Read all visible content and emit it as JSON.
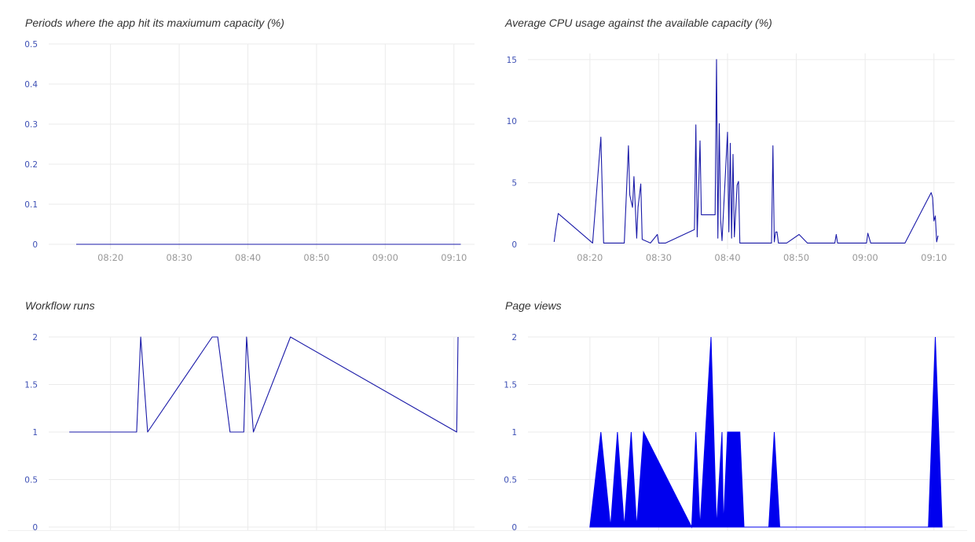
{
  "colors": {
    "series": "#1a1aa8",
    "area_fill": "#0000ee",
    "grid": "#ebebeb",
    "tick_text": "#3f51b5",
    "xtick_text": "#999999",
    "title_text": "#333333"
  },
  "chart_data": [
    {
      "type": "line",
      "title": "Periods where the app hit its maxiumum capacity (%)",
      "xlabel": "",
      "ylabel": "",
      "ylim": [
        0,
        0.5
      ],
      "yticks": [
        0,
        0.1,
        0.2,
        0.3,
        0.4,
        0.5
      ],
      "ytick_labels": [
        "0",
        "0.1",
        "0.2",
        "0.3",
        "0.4",
        "0.5"
      ],
      "xlim": [
        "08:11",
        "09:13"
      ],
      "xticks": [
        "08:20",
        "08:30",
        "08:40",
        "08:50",
        "09:00",
        "09:10"
      ],
      "grid": true,
      "series": [
        {
          "x": [
            "08:15",
            "08:25",
            "08:35",
            "08:45",
            "08:55",
            "09:05",
            "09:11"
          ],
          "y": [
            0,
            0,
            0,
            0,
            0,
            0,
            0
          ]
        }
      ]
    },
    {
      "type": "line",
      "title": "Average CPU usage against the available capacity (%)",
      "xlabel": "",
      "ylabel": "",
      "ylim": [
        0,
        15.5
      ],
      "yticks": [
        0,
        5,
        10,
        15
      ],
      "ytick_labels": [
        "0",
        "5",
        "10",
        "15"
      ],
      "xlim": [
        "08:11",
        "09:13"
      ],
      "xticks": [
        "08:20",
        "08:30",
        "08:40",
        "08:50",
        "09:00",
        "09:10"
      ],
      "grid": true,
      "series": [
        {
          "x": [
            "08:14:48",
            "08:15:00",
            "08:15:24",
            "08:20:24",
            "08:21:36",
            "08:22:00",
            "08:25:00",
            "08:25:36",
            "08:25:48",
            "08:26:12",
            "08:26:24",
            "08:26:48",
            "08:27:00",
            "08:27:24",
            "08:27:36",
            "08:28:48",
            "08:29:48",
            "08:30:00",
            "08:30:12",
            "08:31:00",
            "08:35:12",
            "08:35:24",
            "08:35:36",
            "08:36:00",
            "08:36:12",
            "08:38:12",
            "08:38:24",
            "08:38:36",
            "08:38:48",
            "08:39:00",
            "08:39:12",
            "08:40:00",
            "08:40:12",
            "08:40:24",
            "08:40:36",
            "08:40:48",
            "08:41:00",
            "08:41:24",
            "08:41:36",
            "08:41:48",
            "08:42:00",
            "08:46:24",
            "08:46:36",
            "08:46:48",
            "08:47:00",
            "08:47:12",
            "08:47:24",
            "08:48:36",
            "08:50:24",
            "08:51:36",
            "08:55:36",
            "08:55:48",
            "08:56:00",
            "09:00:12",
            "09:00:24",
            "09:00:48",
            "09:05:48",
            "09:09:36",
            "09:09:48",
            "09:10:00",
            "09:10:12",
            "09:10:24",
            "09:10:36"
          ],
          "y": [
            0.2,
            1.0,
            2.5,
            0.1,
            8.7,
            0.1,
            0.1,
            8.0,
            4.0,
            3.0,
            5.5,
            0.5,
            3.0,
            4.9,
            0.4,
            0.1,
            0.8,
            0.1,
            0.1,
            0.1,
            1.2,
            9.7,
            0.6,
            8.4,
            2.4,
            2.4,
            15.0,
            0.5,
            9.8,
            2.0,
            0.3,
            9.1,
            1.0,
            8.2,
            0.5,
            7.3,
            0.6,
            4.8,
            5.1,
            0.1,
            0.1,
            0.1,
            8.0,
            0.2,
            1.0,
            1.0,
            0.1,
            0.1,
            0.8,
            0.1,
            0.1,
            0.8,
            0.1,
            0.1,
            0.9,
            0.1,
            0.1,
            4.2,
            3.8,
            1.9,
            2.3,
            0.2,
            0.7
          ]
        }
      ]
    },
    {
      "type": "line",
      "title": "Workflow runs",
      "xlabel": "",
      "ylabel": "",
      "ylim": [
        0,
        2
      ],
      "yticks": [
        0,
        0.5,
        1,
        1.5,
        2
      ],
      "ytick_labels": [
        "0",
        "0.5",
        "1",
        "1.5",
        "2"
      ],
      "xlim": [
        "08:11",
        "09:13"
      ],
      "xticks": [
        "08:20",
        "08:30",
        "08:40",
        "08:50",
        "09:00",
        "09:10"
      ],
      "grid": true,
      "series": [
        {
          "x": [
            "08:14:00",
            "08:23:48",
            "08:24:24",
            "08:25:24",
            "08:34:48",
            "08:35:36",
            "08:37:24",
            "08:39:24",
            "08:39:48",
            "08:40:48",
            "08:46:12",
            "09:10:24",
            "09:10:36"
          ],
          "y": [
            1,
            1,
            2,
            1,
            2,
            2,
            1,
            1,
            2,
            1,
            2,
            1,
            2
          ]
        }
      ]
    },
    {
      "type": "area",
      "title": "Page views",
      "xlabel": "",
      "ylabel": "",
      "ylim": [
        0,
        2
      ],
      "yticks": [
        0,
        0.5,
        1,
        1.5,
        2
      ],
      "ytick_labels": [
        "0",
        "0.5",
        "1",
        "1.5",
        "2"
      ],
      "xlim": [
        "08:11",
        "09:13"
      ],
      "xticks": [
        "08:20",
        "08:30",
        "08:40",
        "08:50",
        "09:00",
        "09:10"
      ],
      "grid": true,
      "series": [
        {
          "x": [
            "08:20:00",
            "08:21:36",
            "08:23:00",
            "08:24:00",
            "08:25:00",
            "08:26:00",
            "08:26:48",
            "08:27:48",
            "08:34:48",
            "08:35:24",
            "08:36:00",
            "08:37:36",
            "08:38:24",
            "08:39:12",
            "08:39:24",
            "08:40:00",
            "08:40:36",
            "08:40:48",
            "08:41:24",
            "08:41:48",
            "08:42:24",
            "08:46:00",
            "08:46:48",
            "08:47:36",
            "09:09:12",
            "09:10:12",
            "09:11:12"
          ],
          "y": [
            0,
            1,
            0,
            1,
            0,
            1,
            0,
            1,
            0,
            1,
            0,
            2,
            0,
            1,
            0,
            1,
            1,
            1,
            1,
            1,
            0,
            0,
            1,
            0,
            0,
            2,
            0
          ]
        }
      ]
    }
  ]
}
